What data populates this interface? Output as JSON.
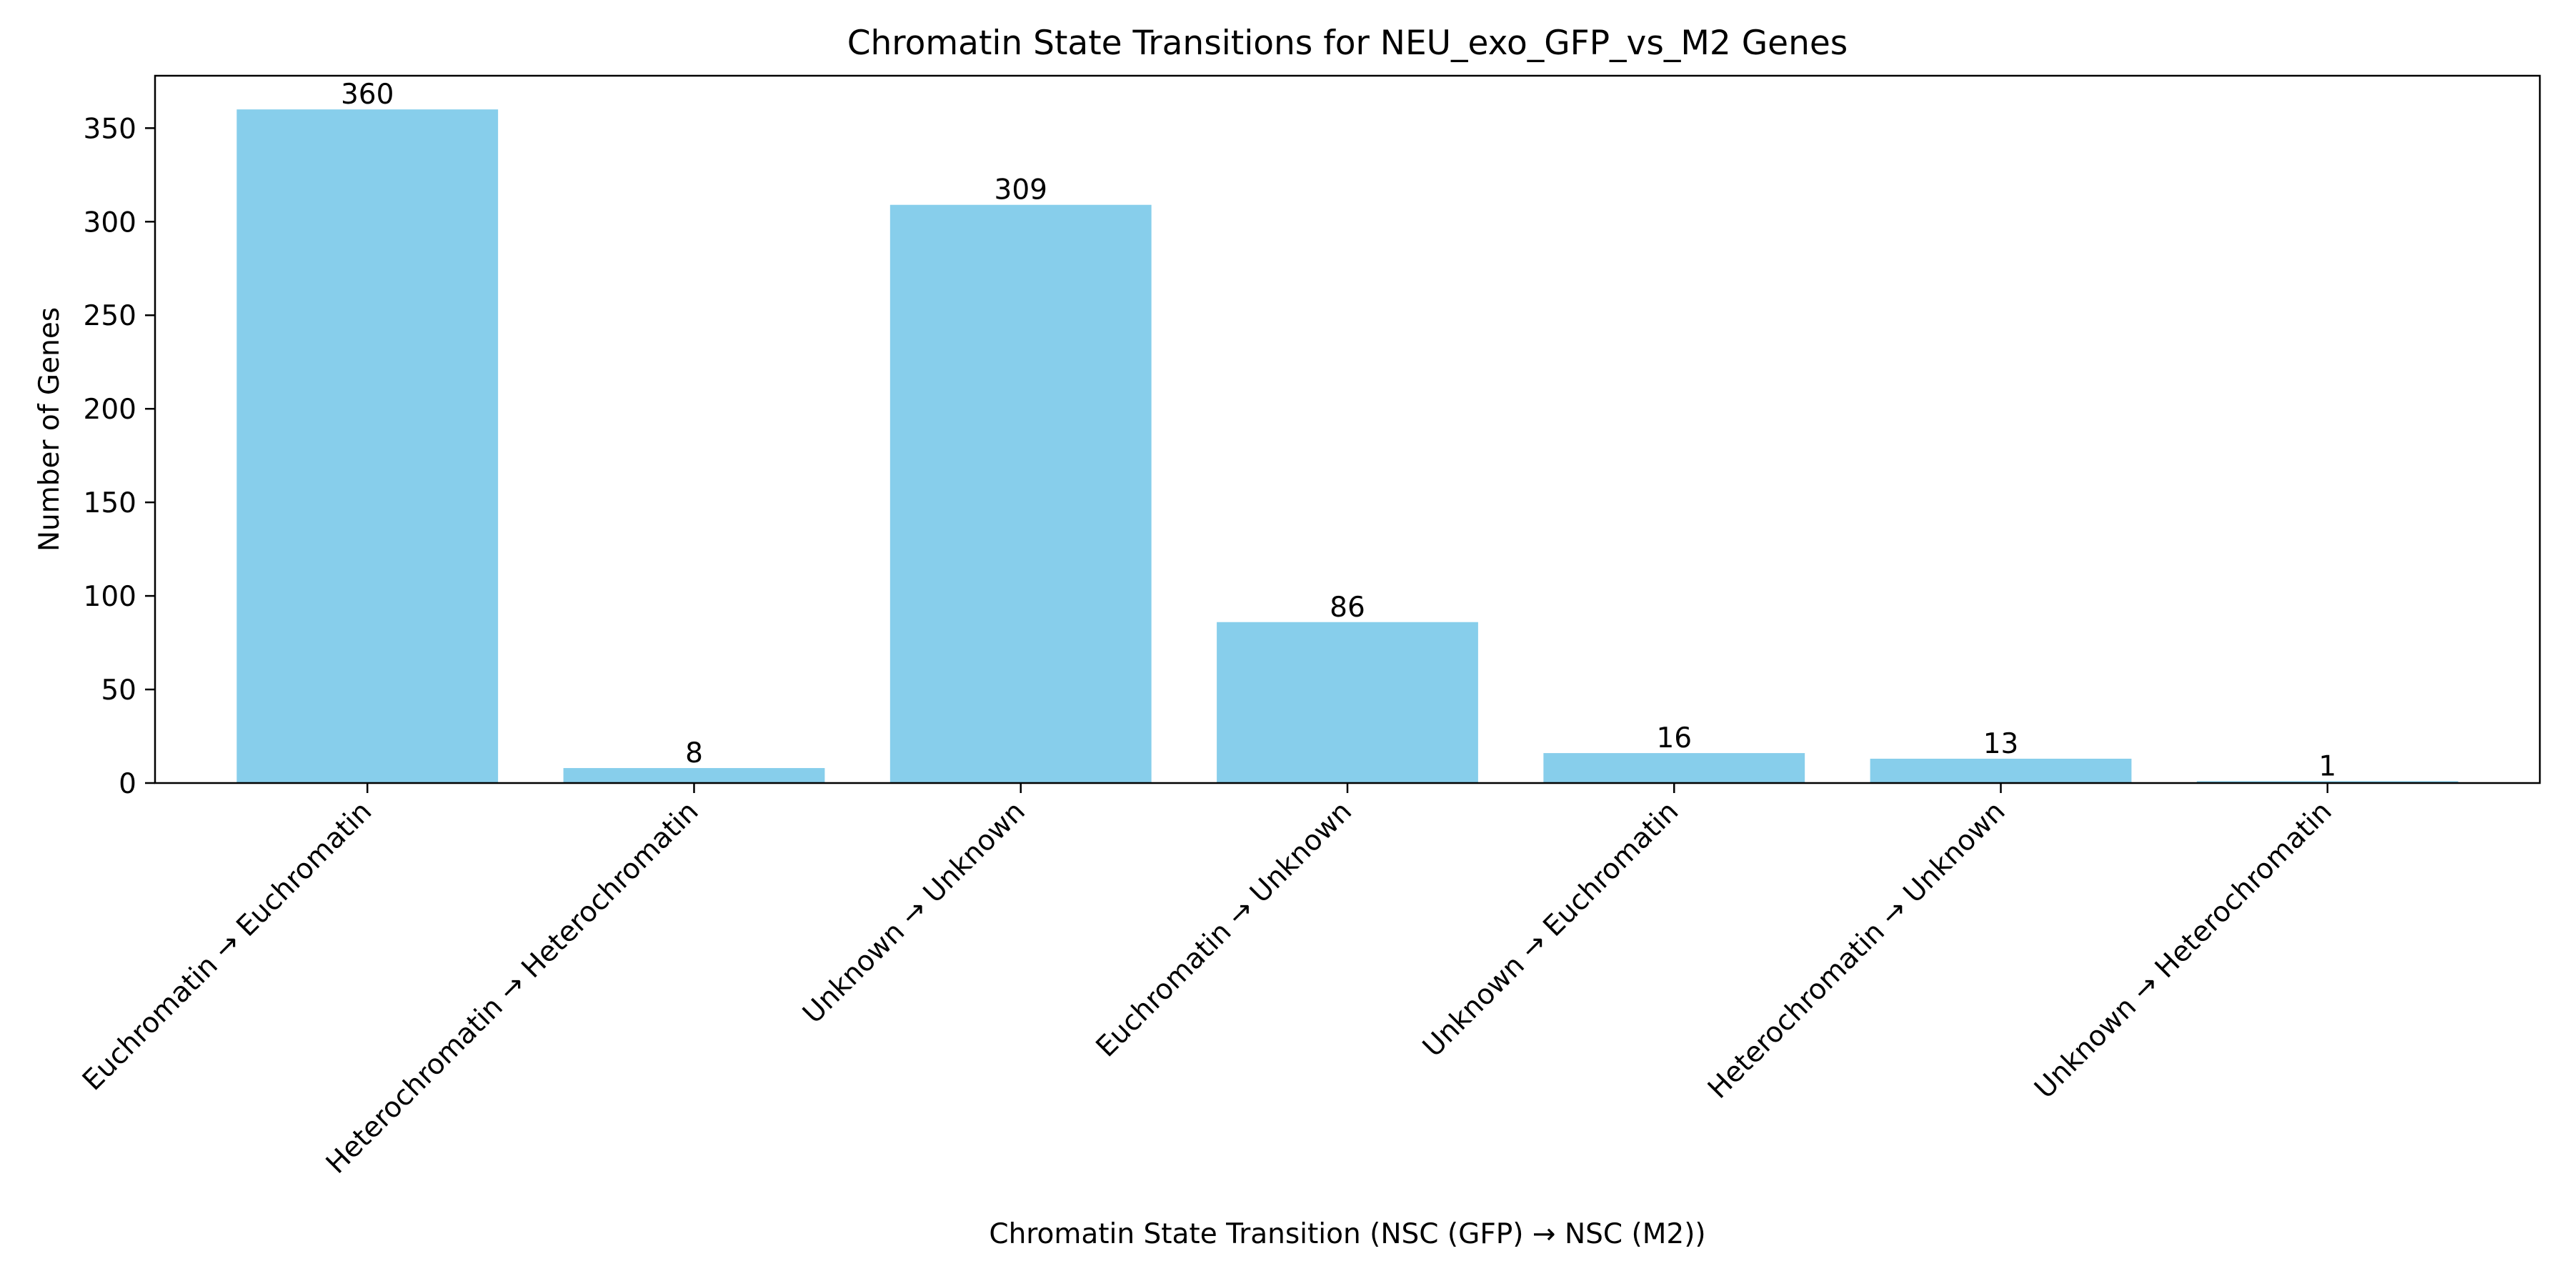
{
  "chart_data": {
    "type": "bar",
    "title": "Chromatin State Transitions for NEU_exo_GFP_vs_M2 Genes",
    "xlabel": "Chromatin State Transition (NSC (GFP) → NSC (M2))",
    "ylabel": "Number of Genes",
    "categories": [
      "Euchromatin → Euchromatin",
      "Heterochromatin → Heterochromatin",
      "Unknown → Unknown",
      "Euchromatin → Unknown",
      "Unknown → Euchromatin",
      "Heterochromatin → Unknown",
      "Unknown → Heterochromatin"
    ],
    "values": [
      360,
      8,
      309,
      86,
      16,
      13,
      1
    ],
    "data_labels": [
      "360",
      "8",
      "309",
      "86",
      "16",
      "13",
      "1"
    ],
    "ylim": [
      0,
      378
    ],
    "yticks": [
      0,
      50,
      100,
      150,
      200,
      250,
      300,
      350
    ],
    "ytick_labels": [
      "0",
      "50",
      "100",
      "150",
      "200",
      "250",
      "300",
      "350"
    ],
    "grid": false,
    "legend": "none",
    "bar_color": "#87ceeb"
  }
}
